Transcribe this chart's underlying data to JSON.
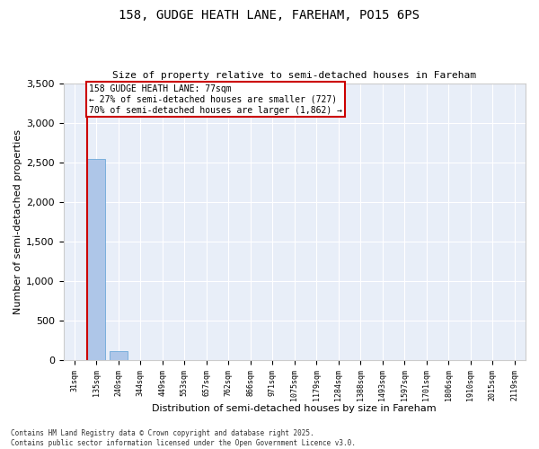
{
  "title1": "158, GUDGE HEATH LANE, FAREHAM, PO15 6PS",
  "title2": "Size of property relative to semi-detached houses in Fareham",
  "xlabel": "Distribution of semi-detached houses by size in Fareham",
  "ylabel": "Number of semi-detached properties",
  "bar_labels": [
    "31sqm",
    "135sqm",
    "240sqm",
    "344sqm",
    "449sqm",
    "553sqm",
    "657sqm",
    "762sqm",
    "866sqm",
    "971sqm",
    "1075sqm",
    "1179sqm",
    "1284sqm",
    "1388sqm",
    "1493sqm",
    "1597sqm",
    "1701sqm",
    "1806sqm",
    "1910sqm",
    "2015sqm",
    "2119sqm"
  ],
  "bar_values": [
    0,
    2540,
    110,
    0,
    0,
    0,
    0,
    0,
    0,
    0,
    0,
    0,
    0,
    0,
    0,
    0,
    0,
    0,
    0,
    0,
    0
  ],
  "bar_color": "#aec6e8",
  "bar_edge_color": "#5a9fd4",
  "property_line_color": "#cc0000",
  "annotation_text": "158 GUDGE HEATH LANE: 77sqm\n← 27% of semi-detached houses are smaller (727)\n70% of semi-detached houses are larger (1,862) →",
  "annotation_box_color": "#cc0000",
  "annotation_text_color": "#000000",
  "ylim": [
    0,
    3500
  ],
  "yticks": [
    0,
    500,
    1000,
    1500,
    2000,
    2500,
    3000,
    3500
  ],
  "bg_color": "#e8eef8",
  "grid_color": "#ffffff",
  "fig_bg_color": "#ffffff",
  "footer1": "Contains HM Land Registry data © Crown copyright and database right 2025.",
  "footer2": "Contains public sector information licensed under the Open Government Licence v3.0."
}
